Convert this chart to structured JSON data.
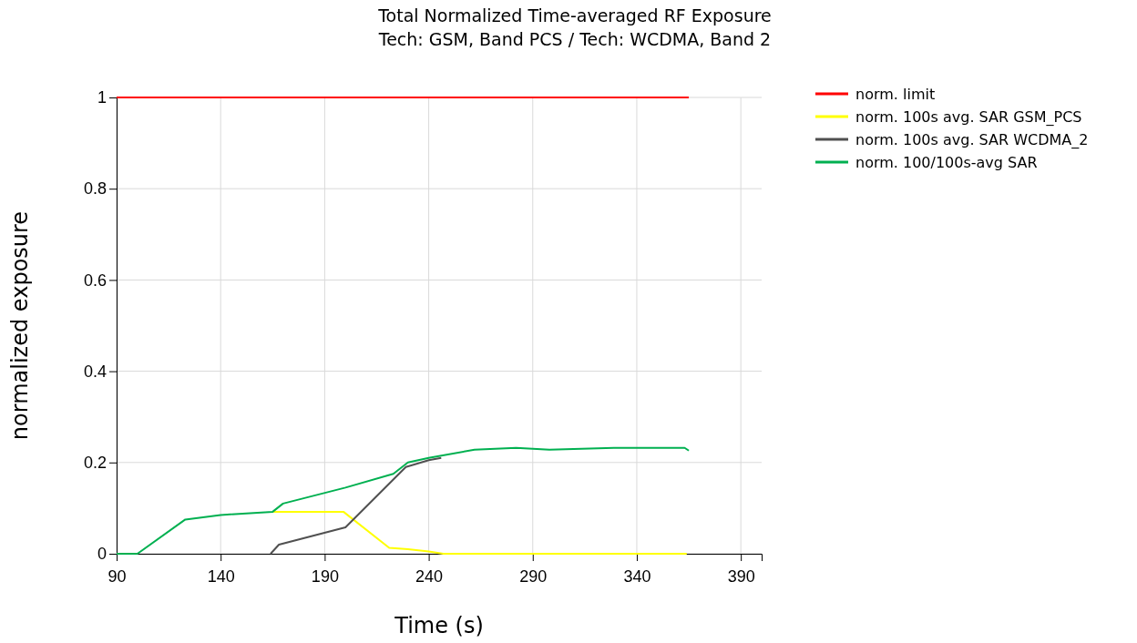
{
  "chart_data": {
    "type": "line",
    "title": "Total Normalized Time-averaged RF Exposure",
    "subtitle": "Tech: GSM, Band PCS / Tech: WCDMA, Band 2",
    "xlabel": "Time (s)",
    "ylabel": "normalized exposure",
    "xlim": [
      90,
      400
    ],
    "xticks": [
      90,
      140,
      190,
      240,
      290,
      340,
      390
    ],
    "ylim": [
      0,
      1
    ],
    "yticks": [
      0,
      0.2,
      0.4,
      0.6,
      0.8,
      1
    ],
    "grid": true,
    "legend": "top right",
    "line_style": "solid",
    "marker": "none",
    "series": [
      {
        "name": "norm. limit",
        "color": "#ff0000",
        "x": [
          90,
          365
        ],
        "values": [
          1,
          1
        ]
      },
      {
        "name": "norm. 100s avg. SAR GSM_PCS",
        "color": "#ffff00",
        "x": [
          165,
          199,
          221,
          230,
          240,
          247,
          364
        ],
        "values": [
          0.092,
          0.092,
          0.013,
          0.01,
          0.005,
          0,
          0
        ]
      },
      {
        "name": "norm. 100s avg. SAR WCDMA_2",
        "color": "#505050",
        "x": [
          164,
          168,
          200,
          229,
          240,
          246
        ],
        "values": [
          0,
          0.02,
          0.058,
          0.19,
          0.205,
          0.21
        ]
      },
      {
        "name": "norm. 100/100s-avg SAR",
        "color": "#00b050",
        "x": [
          90,
          100,
          123,
          140,
          165,
          170,
          200,
          223,
          230,
          240,
          262,
          282,
          298,
          329,
          363,
          365
        ],
        "values": [
          0,
          0,
          0.075,
          0.085,
          0.092,
          0.11,
          0.145,
          0.175,
          0.2,
          0.21,
          0.228,
          0.232,
          0.228,
          0.232,
          0.232,
          0.226
        ]
      }
    ]
  }
}
